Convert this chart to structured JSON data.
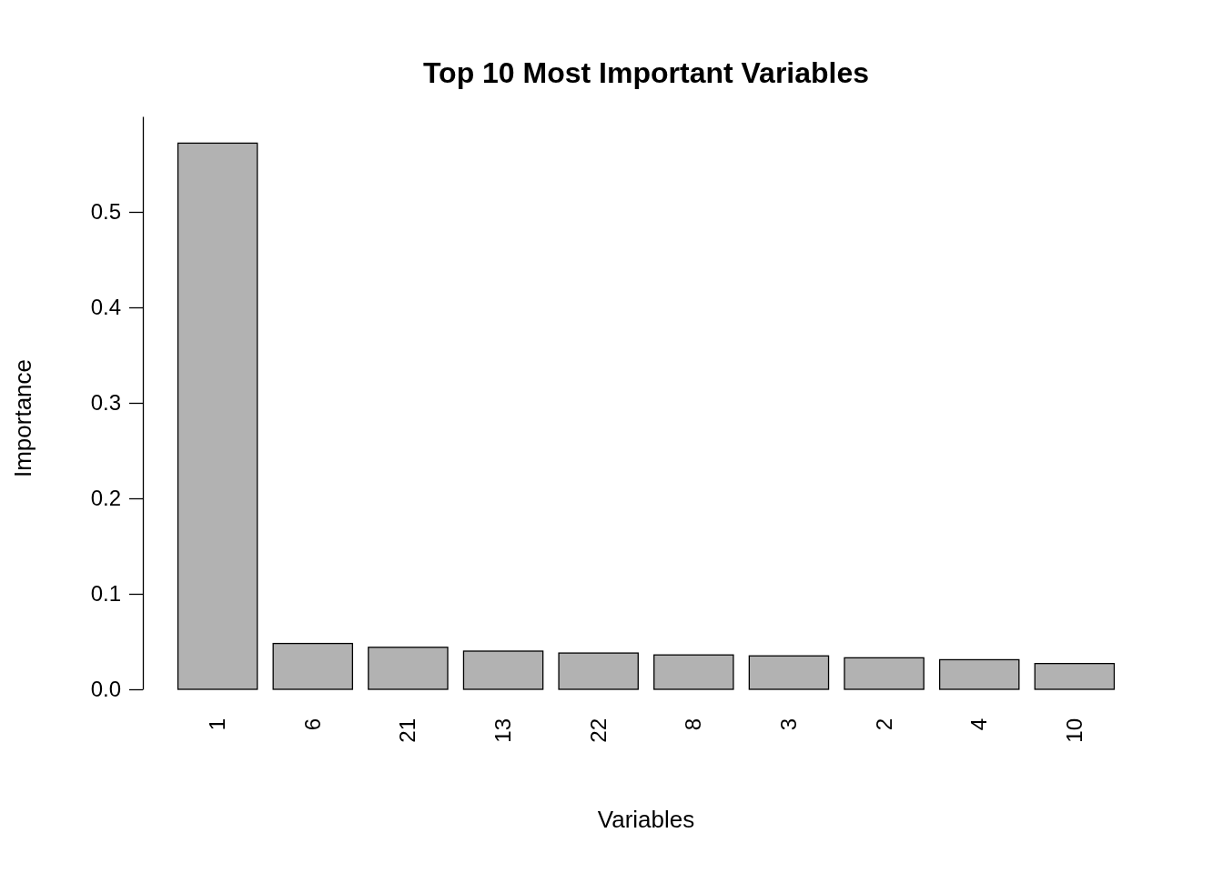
{
  "chart_data": {
    "type": "bar",
    "title": "Top 10 Most Important Variables",
    "xlabel": "Variables",
    "ylabel": "Importance",
    "categories": [
      "1",
      "6",
      "21",
      "13",
      "22",
      "8",
      "3",
      "2",
      "4",
      "10"
    ],
    "values": [
      0.572,
      0.048,
      0.044,
      0.04,
      0.038,
      0.036,
      0.035,
      0.033,
      0.031,
      0.027
    ],
    "color": "#b2b2b2",
    "ylim": [
      0,
      0.6
    ],
    "yticks": [
      {
        "value": 0,
        "label": "0.0"
      },
      {
        "value": 0.1,
        "label": "0.1"
      },
      {
        "value": 0.2,
        "label": "0.2"
      },
      {
        "value": 0.3,
        "label": "0.3"
      },
      {
        "value": 0.4,
        "label": "0.4"
      },
      {
        "value": 0.5,
        "label": "0.5"
      }
    ],
    "grid": false
  }
}
